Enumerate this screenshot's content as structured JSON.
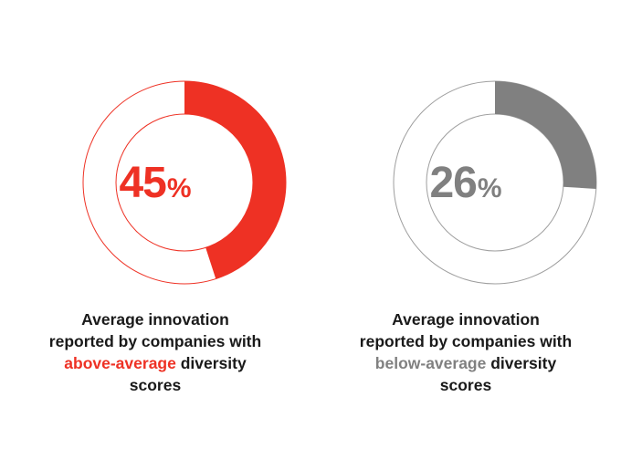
{
  "chart_data": [
    {
      "type": "pie",
      "value": 45,
      "value_text": "45",
      "unit": "%",
      "color": "#ee3124",
      "track_color": "#ee3124",
      "caption": {
        "line1": "Average innovation",
        "line2": "reported by companies with",
        "highlight": "above-average",
        "rest": " diversity",
        "line4": "scores"
      }
    },
    {
      "type": "pie",
      "value": 26,
      "value_text": "26",
      "unit": "%",
      "color": "#808080",
      "track_color": "#9e9e9e",
      "caption": {
        "line1": "Average innovation",
        "line2": "reported by companies with",
        "highlight": "below-average",
        "rest": " diversity",
        "line4": "scores"
      }
    }
  ]
}
